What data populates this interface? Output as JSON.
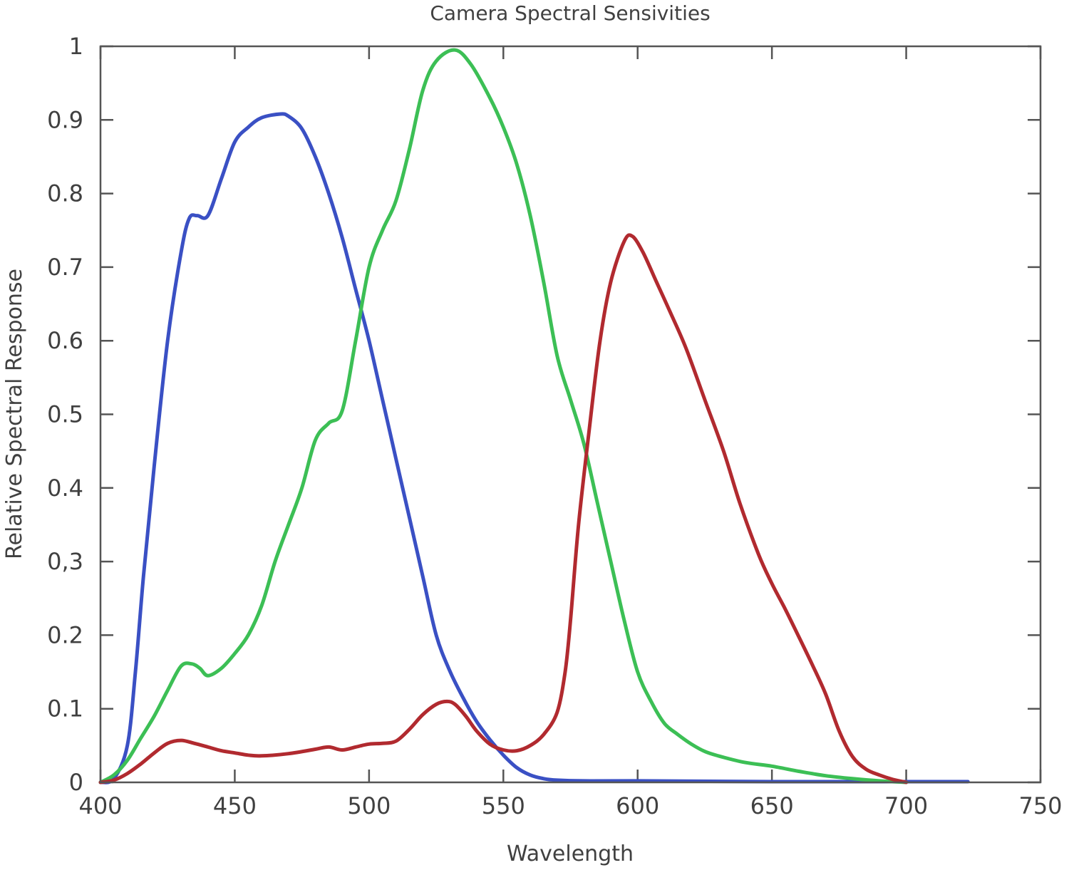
{
  "chart_data": {
    "type": "line",
    "title": "Camera Spectral Sensivities",
    "xlabel": "Wavelength",
    "ylabel": "Relative Spectral Response",
    "xlim": [
      400,
      750
    ],
    "ylim": [
      0,
      1
    ],
    "x_ticks": [
      "400",
      "450",
      "500",
      "550",
      "600",
      "650",
      "700",
      "750"
    ],
    "y_ticks": [
      "0",
      "0.1",
      "0.2",
      "0,3",
      "0.4",
      "0.5",
      "0.6",
      "0.7",
      "0.8",
      "0.9",
      "1"
    ],
    "grid": false,
    "legend": "none",
    "series": [
      {
        "color": "#3a50c4",
        "points": [
          [
            400,
            0
          ],
          [
            405,
            0.005
          ],
          [
            410,
            0.05
          ],
          [
            413,
            0.15
          ],
          [
            416,
            0.28
          ],
          [
            420,
            0.43
          ],
          [
            425,
            0.6
          ],
          [
            430,
            0.72
          ],
          [
            433,
            0.766
          ],
          [
            436,
            0.77
          ],
          [
            440,
            0.77
          ],
          [
            445,
            0.82
          ],
          [
            450,
            0.87
          ],
          [
            455,
            0.89
          ],
          [
            460,
            0.903
          ],
          [
            467,
            0.908
          ],
          [
            470,
            0.905
          ],
          [
            475,
            0.888
          ],
          [
            480,
            0.85
          ],
          [
            485,
            0.8
          ],
          [
            490,
            0.74
          ],
          [
            495,
            0.67
          ],
          [
            500,
            0.6
          ],
          [
            505,
            0.52
          ],
          [
            510,
            0.44
          ],
          [
            515,
            0.36
          ],
          [
            520,
            0.28
          ],
          [
            525,
            0.2
          ],
          [
            530,
            0.152
          ],
          [
            535,
            0.115
          ],
          [
            540,
            0.083
          ],
          [
            545,
            0.058
          ],
          [
            550,
            0.037
          ],
          [
            555,
            0.02
          ],
          [
            560,
            0.01
          ],
          [
            565,
            0.005
          ],
          [
            570,
            0.003
          ],
          [
            580,
            0.002
          ],
          [
            600,
            0.002
          ],
          [
            650,
            0.001
          ],
          [
            700,
            0.001
          ],
          [
            723,
            0.001
          ]
        ]
      },
      {
        "color": "#3cbf55",
        "points": [
          [
            400,
            0
          ],
          [
            405,
            0.01
          ],
          [
            410,
            0.03
          ],
          [
            415,
            0.06
          ],
          [
            420,
            0.09
          ],
          [
            425,
            0.125
          ],
          [
            430,
            0.158
          ],
          [
            434,
            0.161
          ],
          [
            437,
            0.155
          ],
          [
            440,
            0.145
          ],
          [
            445,
            0.155
          ],
          [
            450,
            0.175
          ],
          [
            455,
            0.2
          ],
          [
            460,
            0.24
          ],
          [
            465,
            0.3
          ],
          [
            470,
            0.35
          ],
          [
            475,
            0.4
          ],
          [
            480,
            0.465
          ],
          [
            485,
            0.488
          ],
          [
            490,
            0.505
          ],
          [
            495,
            0.6
          ],
          [
            500,
            0.7
          ],
          [
            505,
            0.75
          ],
          [
            510,
            0.79
          ],
          [
            515,
            0.86
          ],
          [
            520,
            0.94
          ],
          [
            525,
            0.98
          ],
          [
            532,
            0.995
          ],
          [
            538,
            0.975
          ],
          [
            545,
            0.93
          ],
          [
            550,
            0.89
          ],
          [
            555,
            0.84
          ],
          [
            560,
            0.77
          ],
          [
            565,
            0.68
          ],
          [
            570,
            0.58
          ],
          [
            575,
            0.52
          ],
          [
            580,
            0.46
          ],
          [
            585,
            0.38
          ],
          [
            590,
            0.3
          ],
          [
            595,
            0.22
          ],
          [
            600,
            0.15
          ],
          [
            605,
            0.11
          ],
          [
            610,
            0.08
          ],
          [
            615,
            0.065
          ],
          [
            620,
            0.052
          ],
          [
            625,
            0.042
          ],
          [
            630,
            0.036
          ],
          [
            640,
            0.027
          ],
          [
            650,
            0.022
          ],
          [
            660,
            0.015
          ],
          [
            670,
            0.009
          ],
          [
            680,
            0.005
          ],
          [
            690,
            0.002
          ],
          [
            700,
            0
          ]
        ]
      },
      {
        "color": "#b12a2f",
        "points": [
          [
            400,
            0
          ],
          [
            405,
            0.003
          ],
          [
            410,
            0.012
          ],
          [
            415,
            0.025
          ],
          [
            420,
            0.04
          ],
          [
            425,
            0.053
          ],
          [
            430,
            0.057
          ],
          [
            435,
            0.053
          ],
          [
            440,
            0.048
          ],
          [
            445,
            0.043
          ],
          [
            450,
            0.04
          ],
          [
            455,
            0.037
          ],
          [
            460,
            0.036
          ],
          [
            470,
            0.039
          ],
          [
            480,
            0.045
          ],
          [
            485,
            0.048
          ],
          [
            490,
            0.044
          ],
          [
            495,
            0.048
          ],
          [
            500,
            0.052
          ],
          [
            505,
            0.053
          ],
          [
            510,
            0.056
          ],
          [
            515,
            0.072
          ],
          [
            520,
            0.092
          ],
          [
            525,
            0.106
          ],
          [
            529,
            0.11
          ],
          [
            532,
            0.106
          ],
          [
            536,
            0.09
          ],
          [
            540,
            0.07
          ],
          [
            545,
            0.052
          ],
          [
            550,
            0.044
          ],
          [
            555,
            0.043
          ],
          [
            560,
            0.05
          ],
          [
            565,
            0.065
          ],
          [
            570,
            0.095
          ],
          [
            573,
            0.15
          ],
          [
            575,
            0.22
          ],
          [
            578,
            0.35
          ],
          [
            582,
            0.48
          ],
          [
            586,
            0.6
          ],
          [
            590,
            0.68
          ],
          [
            595,
            0.735
          ],
          [
            598,
            0.742
          ],
          [
            602,
            0.72
          ],
          [
            607,
            0.68
          ],
          [
            612,
            0.64
          ],
          [
            618,
            0.59
          ],
          [
            625,
            0.52
          ],
          [
            632,
            0.45
          ],
          [
            638,
            0.38
          ],
          [
            645,
            0.31
          ],
          [
            650,
            0.27
          ],
          [
            655,
            0.235
          ],
          [
            660,
            0.198
          ],
          [
            665,
            0.16
          ],
          [
            670,
            0.12
          ],
          [
            675,
            0.07
          ],
          [
            680,
            0.035
          ],
          [
            685,
            0.018
          ],
          [
            690,
            0.01
          ],
          [
            695,
            0.004
          ],
          [
            700,
            0
          ]
        ]
      }
    ]
  }
}
